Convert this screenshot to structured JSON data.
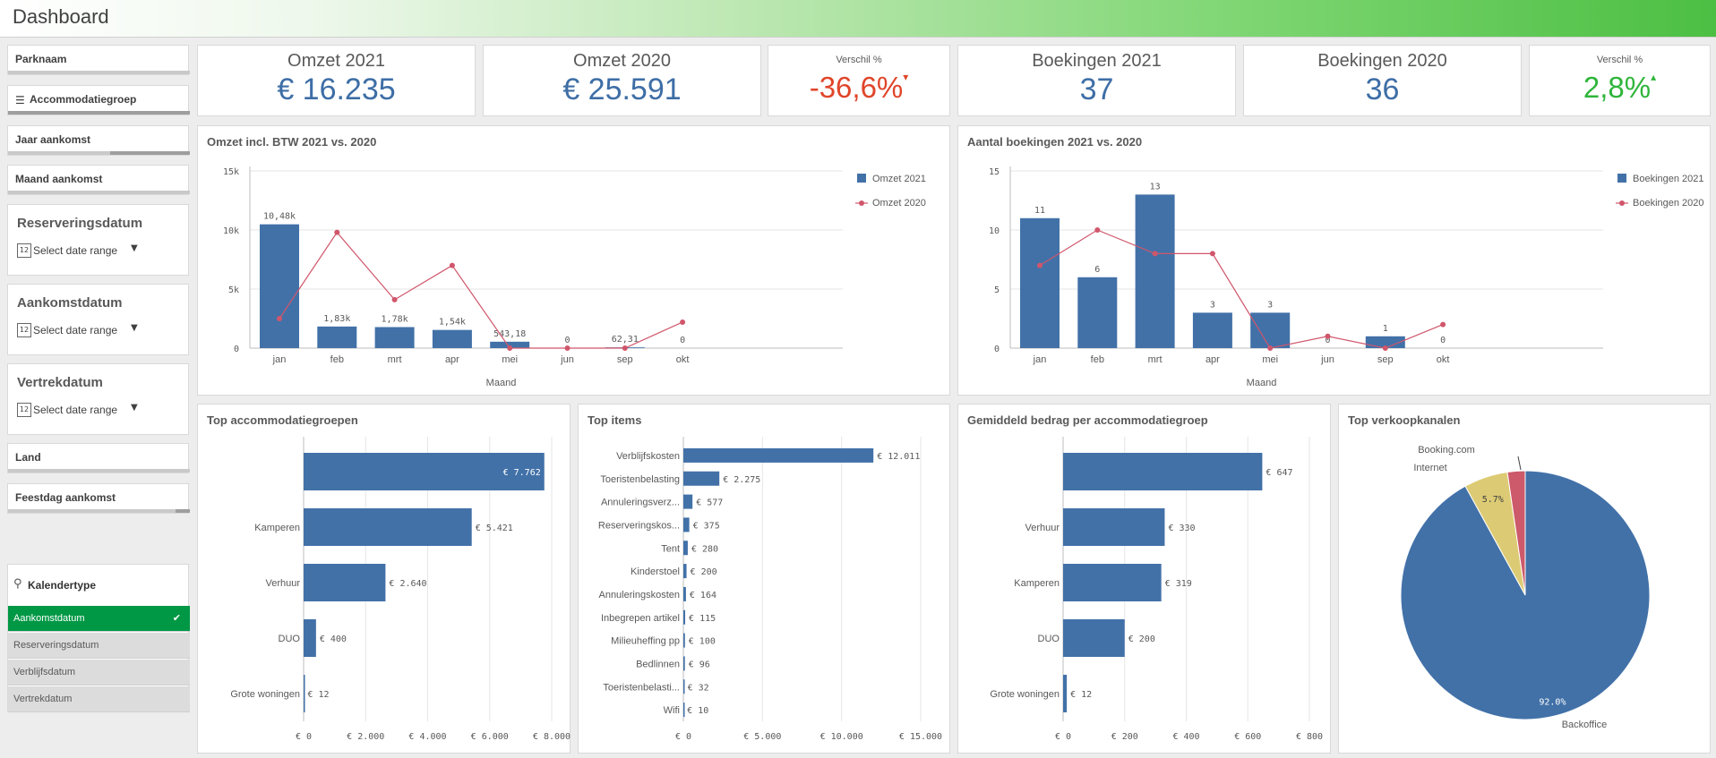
{
  "app": {
    "title": "Dashboard"
  },
  "filters": {
    "parknaam": "Parknaam",
    "accommodatiegroep": "Accommodatiegroep",
    "jaar": "Jaar aankomst",
    "maand": "Maand aankomst",
    "land": "Land",
    "feestdag": "Feestdag aankomst"
  },
  "date_filters": [
    {
      "label": "Reserveringsdatum",
      "placeholder": "Select date range"
    },
    {
      "label": "Aankomstdatum",
      "placeholder": "Select date range"
    },
    {
      "label": "Vertrekdatum",
      "placeholder": "Select date range"
    }
  ],
  "kalender": {
    "title": "Kalendertype",
    "options": [
      "Aankomstdatum",
      "Reserveringsdatum",
      "Verblijfsdatum",
      "Vertrekdatum"
    ],
    "selected": "Aankomstdatum"
  },
  "kpis": {
    "omzet2021": {
      "title": "Omzet 2021",
      "value": "€ 16.235"
    },
    "omzet2020": {
      "title": "Omzet 2020",
      "value": "€ 25.591"
    },
    "verschil1": {
      "title": "Verschil %",
      "value": "-36,6%",
      "arrow": "▾",
      "color": "#e0452a"
    },
    "boek2021": {
      "title": "Boekingen 2021",
      "value": "37"
    },
    "boek2020": {
      "title": "Boekingen 2020",
      "value": "36"
    },
    "verschil2": {
      "title": "Verschil %",
      "value": "2,8%",
      "arrow": "▴",
      "color": "#2fb53b"
    }
  },
  "colors": {
    "bar": "#4271a8",
    "line": "#d0566b",
    "pie_yellow": "#dccb74",
    "pie_red": "#cc5a6a"
  },
  "chart_data": [
    {
      "id": "omzet",
      "type": "bar+line",
      "title": "Omzet incl. BTW 2021 vs. 2020",
      "xlabel": "Maand",
      "categories": [
        "jan",
        "feb",
        "mrt",
        "apr",
        "mei",
        "jun",
        "sep",
        "okt"
      ],
      "series": [
        {
          "name": "Omzet 2021",
          "type": "bar",
          "values": [
            10480,
            1830,
            1780,
            1540,
            543.18,
            0,
            62.31,
            0
          ]
        },
        {
          "name": "Omzet 2020",
          "type": "line",
          "values": [
            2500,
            9800,
            4100,
            7000,
            0,
            0,
            0,
            2200
          ]
        }
      ],
      "labels": [
        "10,48k",
        "1,83k",
        "1,78k",
        "1,54k",
        "543,18",
        "0",
        "62,31",
        "0"
      ],
      "ylim": [
        0,
        15000
      ],
      "yticks": [
        0,
        5000,
        10000,
        15000
      ],
      "ytick_labels": [
        "0",
        "5k",
        "10k",
        "15k"
      ]
    },
    {
      "id": "boekingen",
      "type": "bar+line",
      "title": "Aantal boekingen 2021 vs. 2020",
      "xlabel": "Maand",
      "categories": [
        "jan",
        "feb",
        "mrt",
        "apr",
        "mei",
        "jun",
        "sep",
        "okt"
      ],
      "series": [
        {
          "name": "Boekingen 2021",
          "type": "bar",
          "values": [
            11,
            6,
            13,
            3,
            3,
            0,
            1,
            0
          ]
        },
        {
          "name": "Boekingen 2020",
          "type": "line",
          "values": [
            7,
            10,
            8,
            8,
            0,
            1,
            0,
            2
          ]
        }
      ],
      "labels": [
        "11",
        "6",
        "13",
        "3",
        "3",
        "0",
        "1",
        "0"
      ],
      "ylim": [
        0,
        15
      ],
      "yticks": [
        0,
        5,
        10,
        15
      ],
      "ytick_labels": [
        "0",
        "5",
        "10",
        "15"
      ]
    },
    {
      "id": "topacc",
      "type": "hbar",
      "title": "Top accommodatiegroepen",
      "categories": [
        "",
        "Kamperen",
        "Verhuur",
        "DUO",
        "Grote woningen"
      ],
      "values": [
        7762,
        5421,
        2640,
        400,
        12
      ],
      "labels": [
        "€ 7.762",
        "€ 5.421",
        "€ 2.640",
        "€ 400",
        "€ 12"
      ],
      "xlim": [
        0,
        8000
      ],
      "xticks": [
        0,
        2000,
        4000,
        6000,
        8000
      ],
      "xtick_labels": [
        "€ 0",
        "€ 2.000",
        "€ 4.000",
        "€ 6.000",
        "€ 8.000"
      ]
    },
    {
      "id": "topitems",
      "type": "hbar",
      "title": "Top items",
      "categories": [
        "Verblijfskosten",
        "Toeristenbelasting",
        "Annuleringsverz...",
        "Reserveringskos...",
        "Tent",
        "Kinderstoel",
        "Annuleringskosten",
        "Inbegrepen artikel",
        "Milieuheffing pp",
        "Bedlinnen",
        "Toeristenbelasti...",
        "Wifi"
      ],
      "values": [
        12011,
        2275,
        577,
        375,
        280,
        200,
        164,
        115,
        100,
        96,
        32,
        10
      ],
      "labels": [
        "€ 12.011",
        "€ 2.275",
        "€ 577",
        "€ 375",
        "€ 280",
        "€ 200",
        "€ 164",
        "€ 115",
        "€ 100",
        "€ 96",
        "€ 32",
        "€ 10"
      ],
      "xlim": [
        0,
        15000
      ],
      "xticks": [
        0,
        5000,
        10000,
        15000
      ],
      "xtick_labels": [
        "€ 0",
        "€ 5.000",
        "€ 10.000",
        "€ 15.000"
      ]
    },
    {
      "id": "gemiddeld",
      "type": "hbar",
      "title": "Gemiddeld bedrag per accommodatiegroep",
      "categories": [
        "",
        "Verhuur",
        "Kamperen",
        "DUO",
        "Grote woningen"
      ],
      "values": [
        647,
        330,
        319,
        200,
        12
      ],
      "labels": [
        "€ 647",
        "€ 330",
        "€ 319",
        "€ 200",
        "€ 12"
      ],
      "xlim": [
        0,
        800
      ],
      "xticks": [
        0,
        200,
        400,
        600,
        800
      ],
      "xtick_labels": [
        "€ 0",
        "€ 200",
        "€ 400",
        "€ 600",
        "€ 800"
      ]
    },
    {
      "id": "kanalen",
      "type": "pie",
      "title": "Top verkoopkanalen",
      "slices": [
        {
          "name": "Backoffice",
          "value": 92.0,
          "label": "92.0%"
        },
        {
          "name": "Internet",
          "value": 5.7,
          "label": "5.7%"
        },
        {
          "name": "Booking.com",
          "value": 2.3,
          "label": ""
        }
      ]
    }
  ]
}
